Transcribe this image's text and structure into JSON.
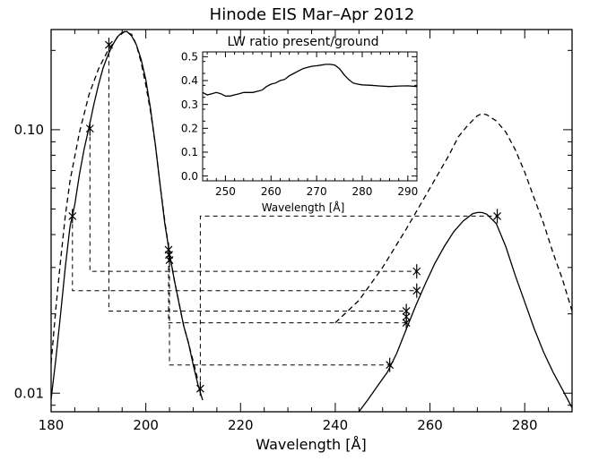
{
  "chart_data": [
    {
      "type": "line",
      "title": "Hinode EIS Mar–Apr 2012",
      "xlabel": "Wavelength [Å]",
      "ylabel": "",
      "xlim": [
        180,
        290
      ],
      "ylim": [
        0.0085,
        0.24
      ],
      "yscale": "log",
      "x_ticks": [
        180,
        200,
        220,
        240,
        260,
        280
      ],
      "x_tick_labels": [
        "180",
        "200",
        "220",
        "240",
        "260",
        "280"
      ],
      "y_ticks": [
        0.01,
        0.1
      ],
      "y_tick_labels": [
        "0.01",
        "0.10"
      ],
      "series": [
        {
          "style": "solid",
          "points": [
            [
              180,
              0.0095
            ],
            [
              181,
              0.0135
            ],
            [
              182,
              0.02
            ],
            [
              183,
              0.03
            ],
            [
              184,
              0.043
            ],
            [
              185,
              0.052
            ],
            [
              186,
              0.068
            ],
            [
              187,
              0.085
            ],
            [
              188,
              0.102
            ],
            [
              189,
              0.124
            ],
            [
              190,
              0.148
            ],
            [
              191,
              0.172
            ],
            [
              192,
              0.192
            ],
            [
              193,
              0.21
            ],
            [
              194,
              0.225
            ],
            [
              195,
              0.234
            ],
            [
              196,
              0.236
            ],
            [
              197,
              0.227
            ],
            [
              198,
              0.21
            ],
            [
              199,
              0.185
            ],
            [
              200,
              0.155
            ],
            [
              201,
              0.12
            ],
            [
              202,
              0.088
            ],
            [
              203,
              0.062
            ],
            [
              204,
              0.044
            ],
            [
              205,
              0.034
            ],
            [
              206,
              0.027
            ],
            [
              207,
              0.022
            ],
            [
              208,
              0.018
            ],
            [
              209,
              0.0155
            ],
            [
              210,
              0.0128
            ],
            [
              211,
              0.0108
            ],
            [
              212,
              0.0094
            ]
          ]
        },
        {
          "style": "solid",
          "points": [
            [
              245,
              0.0085
            ],
            [
              247,
              0.0095
            ],
            [
              249,
              0.0107
            ],
            [
              251,
              0.012
            ],
            [
              253,
              0.0142
            ],
            [
              255,
              0.0175
            ],
            [
              257,
              0.0215
            ],
            [
              259,
              0.026
            ],
            [
              261,
              0.031
            ],
            [
              263,
              0.036
            ],
            [
              265,
              0.041
            ],
            [
              267,
              0.045
            ],
            [
              269,
              0.048
            ],
            [
              270,
              0.0485
            ],
            [
              271,
              0.0485
            ],
            [
              272,
              0.0478
            ],
            [
              274,
              0.044
            ],
            [
              276,
              0.036
            ],
            [
              278,
              0.028
            ],
            [
              280,
              0.0222
            ],
            [
              282,
              0.0176
            ],
            [
              284,
              0.0143
            ],
            [
              286,
              0.012
            ],
            [
              288,
              0.0103
            ],
            [
              290,
              0.0088
            ]
          ]
        },
        {
          "style": "dashed",
          "points": [
            [
              180,
              0.013
            ],
            [
              181,
              0.021
            ],
            [
              182,
              0.032
            ],
            [
              183,
              0.047
            ],
            [
              184,
              0.064
            ],
            [
              186,
              0.098
            ],
            [
              188,
              0.136
            ],
            [
              190,
              0.17
            ],
            [
              192,
              0.2
            ],
            [
              194,
              0.224
            ],
            [
              195.5,
              0.236
            ],
            [
              197,
              0.23
            ],
            [
              198,
              0.21
            ],
            [
              199,
              0.18
            ],
            [
              200,
              0.148
            ],
            [
              201,
              0.117
            ],
            [
              202,
              0.088
            ],
            [
              203,
              0.062
            ],
            [
              204,
              0.045
            ],
            [
              205,
              0.034
            ],
            [
              206,
              0.027
            ],
            [
              207,
              0.022
            ],
            [
              208,
              0.018
            ],
            [
              209,
              0.0155
            ],
            [
              210,
              0.0132
            ],
            [
              211,
              0.0112
            ]
          ]
        },
        {
          "style": "dashed",
          "points": [
            [
              240,
              0.0185
            ],
            [
              245,
              0.0225
            ],
            [
              250,
              0.03
            ],
            [
              255,
              0.042
            ],
            [
              260,
              0.06
            ],
            [
              264,
              0.08
            ],
            [
              266,
              0.094
            ],
            [
              268,
              0.104
            ],
            [
              270,
              0.113
            ],
            [
              271,
              0.115
            ],
            [
              272,
              0.114
            ],
            [
              274,
              0.108
            ],
            [
              276,
              0.098
            ],
            [
              278,
              0.084
            ],
            [
              280,
              0.069
            ],
            [
              282,
              0.055
            ],
            [
              284,
              0.044
            ],
            [
              286,
              0.034
            ],
            [
              288,
              0.027
            ],
            [
              290,
              0.0205
            ]
          ]
        },
        {
          "style": "markers",
          "points": [
            [
              184.5,
              0.047
            ],
            [
              188.2,
              0.101
            ],
            [
              192.2,
              0.21
            ],
            [
              204.8,
              0.035
            ],
            [
              204.9,
              0.0335
            ],
            [
              205.0,
              0.032
            ],
            [
              211.5,
              0.0104
            ],
            [
              251.5,
              0.0128
            ],
            [
              255.0,
              0.0205
            ],
            [
              255.0,
              0.0195
            ],
            [
              255.0,
              0.0185
            ],
            [
              257.2,
              0.029
            ],
            [
              257.2,
              0.0245
            ],
            [
              274.2,
              0.047
            ]
          ]
        }
      ],
      "connectors": [
        [
          [
            184.5,
            0.047
          ],
          [
            184.5,
            0.0245
          ],
          [
            257.2,
            0.0245
          ]
        ],
        [
          [
            188.2,
            0.101
          ],
          [
            188.2,
            0.029
          ],
          [
            257.2,
            0.029
          ]
        ],
        [
          [
            192.2,
            0.21
          ],
          [
            192.2,
            0.0205
          ],
          [
            255.0,
            0.0205
          ]
        ],
        [
          [
            204.8,
            0.035
          ],
          [
            204.8,
            0.0185
          ],
          [
            255.0,
            0.0185
          ]
        ],
        [
          [
            205.0,
            0.032
          ],
          [
            205.0,
            0.0128
          ],
          [
            251.5,
            0.0128
          ]
        ],
        [
          [
            211.5,
            0.0104
          ],
          [
            211.5,
            0.047
          ],
          [
            274.2,
            0.047
          ]
        ]
      ]
    },
    {
      "type": "line",
      "title": "LW ratio present/ground",
      "xlabel": "Wavelength [Å]",
      "ylabel": "",
      "xlim": [
        245,
        292
      ],
      "ylim": [
        -0.02,
        0.52
      ],
      "x_ticks": [
        250,
        260,
        270,
        280,
        290
      ],
      "x_tick_labels": [
        "250",
        "260",
        "270",
        "280",
        "290"
      ],
      "y_ticks": [
        0.0,
        0.1,
        0.2,
        0.3,
        0.4,
        0.5
      ],
      "y_tick_labels": [
        "0.0",
        "0.1",
        "0.2",
        "0.3",
        "0.4",
        "0.5"
      ],
      "series": [
        {
          "style": "solid",
          "points": [
            [
              245,
              0.35
            ],
            [
              246,
              0.34
            ],
            [
              247,
              0.345
            ],
            [
              248,
              0.35
            ],
            [
              249,
              0.345
            ],
            [
              250,
              0.335
            ],
            [
              251,
              0.335
            ],
            [
              252,
              0.34
            ],
            [
              253,
              0.345
            ],
            [
              254,
              0.35
            ],
            [
              256,
              0.35
            ],
            [
              258,
              0.36
            ],
            [
              259,
              0.375
            ],
            [
              260,
              0.385
            ],
            [
              261,
              0.39
            ],
            [
              262,
              0.4
            ],
            [
              263,
              0.405
            ],
            [
              264,
              0.42
            ],
            [
              265,
              0.43
            ],
            [
              266,
              0.44
            ],
            [
              267,
              0.45
            ],
            [
              268,
              0.455
            ],
            [
              269,
              0.46
            ],
            [
              270,
              0.462
            ],
            [
              271,
              0.465
            ],
            [
              272,
              0.468
            ],
            [
              273,
              0.468
            ],
            [
              274,
              0.465
            ],
            [
              275,
              0.45
            ],
            [
              276,
              0.425
            ],
            [
              277,
              0.405
            ],
            [
              278,
              0.39
            ],
            [
              279,
              0.385
            ],
            [
              280,
              0.382
            ],
            [
              282,
              0.38
            ],
            [
              284,
              0.377
            ],
            [
              286,
              0.375
            ],
            [
              288,
              0.377
            ],
            [
              290,
              0.378
            ],
            [
              292,
              0.375
            ]
          ]
        }
      ]
    }
  ]
}
